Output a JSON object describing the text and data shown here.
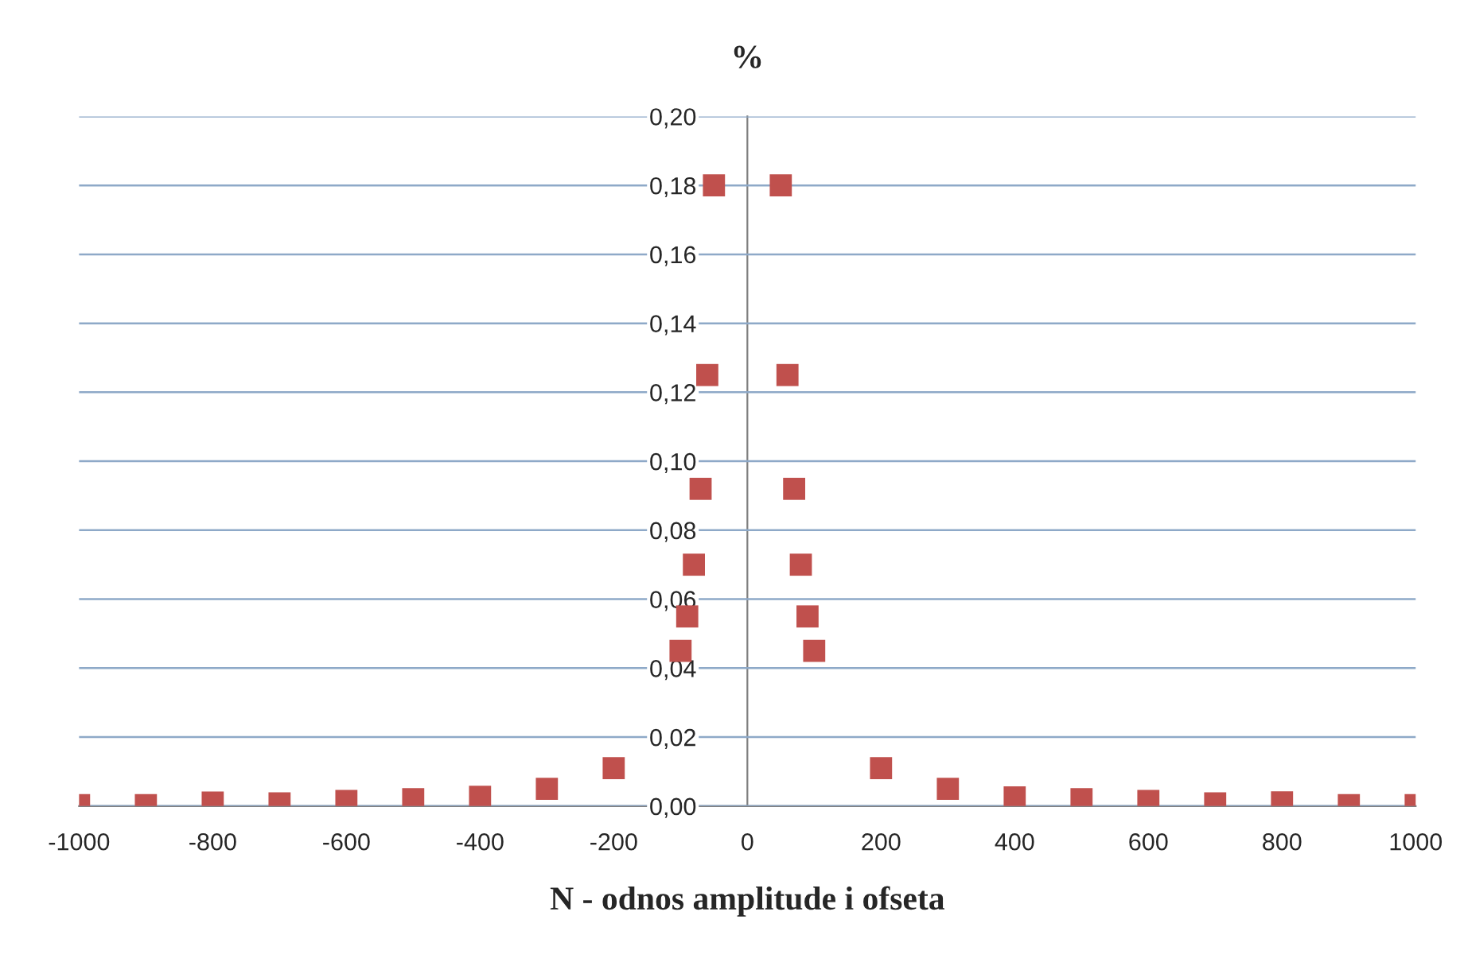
{
  "chart_data": {
    "type": "scatter",
    "title": "%",
    "xlabel": "N - odnos amplitude i ofseta",
    "x": [
      -1000,
      -900,
      -800,
      -700,
      -600,
      -500,
      -400,
      -300,
      -200,
      -100,
      -90,
      -80,
      -70,
      -60,
      -50,
      50,
      60,
      70,
      80,
      90,
      100,
      200,
      300,
      400,
      500,
      600,
      700,
      800,
      900,
      1000
    ],
    "series": [
      {
        "color": "#c0504d",
        "values": [
          0.0003,
          0.0003,
          0.001,
          0.0008,
          0.0015,
          0.002,
          0.0027,
          0.005,
          0.011,
          0.045,
          0.055,
          0.07,
          0.092,
          0.125,
          0.18,
          0.18,
          0.125,
          0.092,
          0.07,
          0.055,
          0.045,
          0.011,
          0.005,
          0.0025,
          0.002,
          0.0015,
          0.0008,
          0.0011,
          0.0003,
          0.0003
        ]
      }
    ],
    "marker": "square",
    "grid": "y",
    "xlim": [
      -1000,
      1000
    ],
    "ylim": [
      0,
      0.2
    ],
    "xticks": [
      -1000,
      -800,
      -600,
      -400,
      -200,
      0,
      200,
      400,
      600,
      800,
      1000
    ],
    "yticks": [
      {
        "value": 0,
        "label": "0,00"
      },
      {
        "value": 0.02,
        "label": "0,02"
      },
      {
        "value": 0.04,
        "label": "0,04"
      },
      {
        "value": 0.06,
        "label": "0,06"
      },
      {
        "value": 0.08,
        "label": "0,08"
      },
      {
        "value": 0.1,
        "label": "0,10"
      },
      {
        "value": 0.12,
        "label": "0,12"
      },
      {
        "value": 0.14,
        "label": "0,14"
      },
      {
        "value": 0.16,
        "label": "0,16"
      },
      {
        "value": 0.18,
        "label": "0,18"
      },
      {
        "value": 0.2,
        "label": "0,20"
      }
    ]
  }
}
